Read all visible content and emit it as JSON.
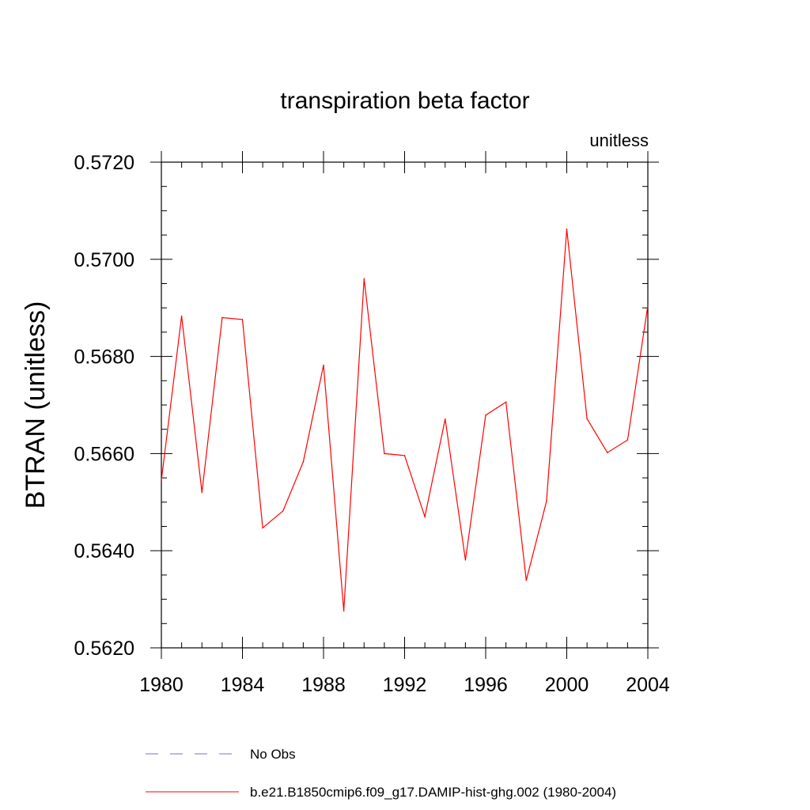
{
  "chart_data": {
    "type": "line",
    "title": "transpiration beta factor",
    "units_label": "unitless",
    "xlabel": "",
    "ylabel": "BTRAN  (unitless)",
    "xlim": [
      1980,
      2004
    ],
    "ylim": [
      0.562,
      0.572
    ],
    "x_ticks": [
      1980,
      1984,
      1988,
      1992,
      1996,
      2000,
      2004
    ],
    "x_tick_labels": [
      "1980",
      "1984",
      "1988",
      "1992",
      "1996",
      "2000",
      "2004"
    ],
    "y_ticks": [
      0.562,
      0.564,
      0.566,
      0.568,
      0.57,
      0.572
    ],
    "y_tick_labels": [
      "0.5620",
      "0.5640",
      "0.5660",
      "0.5680",
      "0.5700",
      "0.5720"
    ],
    "grid": false,
    "legend_position": "bottom",
    "series": [
      {
        "name": "b.e21.B1850cmip6.f09_g17.DAMIP-hist-ghg.002 (1980-2004)",
        "color": "#ff0000",
        "dash": "solid",
        "x": [
          1980,
          1981,
          1982,
          1983,
          1984,
          1985,
          1986,
          1987,
          1988,
          1989,
          1990,
          1991,
          1992,
          1993,
          1994,
          1995,
          1996,
          1997,
          1998,
          1999,
          2000,
          2001,
          2002,
          2003,
          2004
        ],
        "y": [
          0.56545,
          0.56883,
          0.5652,
          0.5688,
          0.56876,
          0.56447,
          0.56482,
          0.56583,
          0.56782,
          0.56276,
          0.5696,
          0.566,
          0.56596,
          0.5647,
          0.56671,
          0.56381,
          0.56679,
          0.56706,
          0.56339,
          0.56502,
          0.57062,
          0.56672,
          0.56602,
          0.56628,
          0.56905
        ]
      }
    ],
    "legend": [
      {
        "label": "No Obs",
        "color": "#7b6fd0",
        "dash": "dashed"
      },
      {
        "label": "b.e21.B1850cmip6.f09_g17.DAMIP-hist-ghg.002 (1980-2004)",
        "color": "#ff0000",
        "dash": "solid"
      }
    ]
  }
}
